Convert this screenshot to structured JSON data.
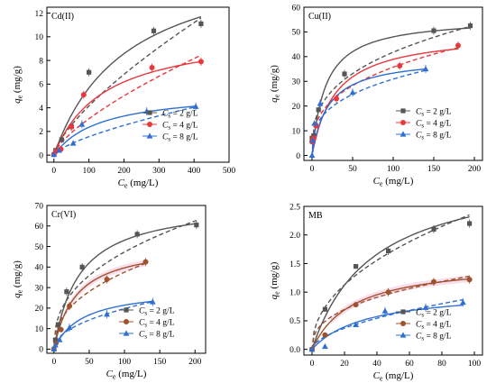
{
  "figure": {
    "legend_entries": [
      {
        "prefix": "C",
        "subscript": "s",
        "text": " = 2 g/L"
      },
      {
        "prefix": "C",
        "subscript": "s",
        "text": " = 4 g/L"
      },
      {
        "prefix": "C",
        "subscript": "s",
        "text": " = 8 g/L"
      }
    ],
    "colors": {
      "cs2": "#555555",
      "cs4": "#e8383d",
      "cs8": "#2f6fd1",
      "cs4_brown": "#a0522d",
      "band_pink": "#f6d5e6"
    }
  },
  "chart_data": [
    {
      "type": "scatter",
      "title": "Cd(II)",
      "xlabel": "Ce (mg/L)",
      "ylabel": "qe (mg/g)",
      "xlim": [
        -20,
        500
      ],
      "ylim": [
        -0.6,
        12.5
      ],
      "xticks": [
        0,
        100,
        200,
        300,
        400,
        500
      ],
      "yticks": [
        0,
        2,
        4,
        6,
        8,
        10,
        12
      ],
      "legend_position": "lower-right",
      "series": [
        {
          "name": "Cs = 2 g/L",
          "marker": "square",
          "color": "#555555",
          "x": [
            0,
            5,
            22,
            50,
            100,
            285,
            420
          ],
          "y": [
            0.05,
            0.4,
            1.3,
            2.4,
            7.0,
            10.5,
            11.1
          ],
          "fit1": {
            "Qm": 17.5,
            "K": 0.0048
          },
          "fit2": {
            "Kf": 0.155,
            "n": 1.4
          }
        },
        {
          "name": "Cs = 4 g/L",
          "marker": "circle",
          "color": "#e8383d",
          "x": [
            0,
            5,
            20,
            50,
            85,
            280,
            420
          ],
          "y": [
            0.05,
            0.3,
            0.5,
            2.4,
            5.1,
            7.4,
            7.9
          ],
          "fit1": {
            "Qm": 10.6,
            "K": 0.007
          },
          "fit2": {
            "Kf": 0.12,
            "n": 1.42
          }
        },
        {
          "name": "Cs = 8 g/L",
          "marker": "triangle",
          "color": "#2f6fd1",
          "x": [
            0,
            15,
            55,
            80,
            265,
            405
          ],
          "y": [
            0.05,
            0.4,
            1.0,
            2.6,
            3.7,
            4.1
          ],
          "fit1": {
            "Qm": 5.5,
            "K": 0.0075
          },
          "fit2": {
            "Kf": 0.065,
            "n": 1.45
          }
        }
      ]
    },
    {
      "type": "scatter",
      "title": "Cu(II)",
      "xlabel": "Ce (mg/L)",
      "ylabel": "qe (mg/g)",
      "xlim": [
        -10,
        210
      ],
      "ylim": [
        -2,
        60
      ],
      "xticks": [
        0,
        50,
        100,
        150,
        200
      ],
      "yticks": [
        0,
        10,
        20,
        30,
        40,
        50,
        60
      ],
      "legend_position": "lower-right",
      "series": [
        {
          "name": "Cs = 2 g/L",
          "marker": "square",
          "color": "#555555",
          "x": [
            0,
            2,
            8,
            40,
            150,
            195
          ],
          "y": [
            7,
            8,
            18.5,
            33,
            50.5,
            52.5
          ],
          "fit1": {
            "Qm": 56,
            "K": 0.06
          },
          "fit2": {
            "Kf": 9.0,
            "n": 3.0
          }
        },
        {
          "name": "Cs = 4 g/L",
          "marker": "circle",
          "color": "#e8383d",
          "x": [
            0,
            2,
            5,
            30,
            108,
            180
          ],
          "y": [
            5.5,
            7,
            12,
            23,
            36.3,
            44.5
          ],
          "fit1": {
            "Qm": 50,
            "K": 0.035
          },
          "fit2": {
            "Kf": 7.5,
            "n": 2.95
          }
        },
        {
          "name": "Cs = 8 g/L",
          "marker": "triangle",
          "color": "#2f6fd1",
          "x": [
            0,
            1,
            3,
            10,
            50,
            140
          ],
          "y": [
            0,
            6,
            13,
            21,
            25.5,
            35
          ],
          "fit1": {
            "Qm": 40,
            "K": 0.05
          },
          "fit2": {
            "Kf": 7.0,
            "n": 3.1
          }
        }
      ]
    },
    {
      "type": "scatter",
      "title": "Cr(VI)",
      "xlabel": "Ce (mg/L)",
      "ylabel": "qe (mg/g)",
      "xlim": [
        -10,
        215
      ],
      "ylim": [
        -2,
        70
      ],
      "xticks": [
        0,
        50,
        100,
        150,
        200
      ],
      "yticks": [
        0,
        10,
        20,
        30,
        40,
        50,
        60,
        70
      ],
      "legend_position": "lower-right",
      "series": [
        {
          "name": "Cs = 2 g/L",
          "marker": "square",
          "color": "#555555",
          "x": [
            0,
            2,
            6,
            18,
            40,
            118,
            202
          ],
          "y": [
            0,
            4.5,
            12,
            28,
            40,
            56,
            60.5
          ],
          "fit1": {
            "Qm": 72,
            "K": 0.028
          },
          "fit2": {
            "Kf": 7.5,
            "n": 2.5
          }
        },
        {
          "name": "Cs = 4 g/L",
          "marker": "circle",
          "color": "#a0522d",
          "x": [
            0,
            3,
            10,
            22,
            75,
            130
          ],
          "y": [
            0,
            3,
            9.5,
            21,
            34,
            42.5
          ],
          "fit1": {
            "Qm": 52,
            "K": 0.032
          },
          "fit2": {
            "Kf": 5.5,
            "n": 2.4
          }
        },
        {
          "name": "Cs = 8 g/L",
          "marker": "triangle",
          "color": "#2f6fd1",
          "x": [
            0,
            2,
            8,
            22,
            75,
            140
          ],
          "y": [
            0,
            2,
            4.5,
            10.5,
            17,
            23
          ],
          "fit1": {
            "Qm": 30,
            "K": 0.025
          },
          "fit2": {
            "Kf": 2.2,
            "n": 2.1
          }
        }
      ]
    },
    {
      "type": "scatter",
      "title": "MB",
      "xlabel": "Ce (mg/L)",
      "ylabel": "qe (mg/g)",
      "xlim": [
        -5,
        105
      ],
      "ylim": [
        -0.1,
        2.5
      ],
      "xticks": [
        0,
        20,
        40,
        60,
        80,
        100
      ],
      "yticks": [
        0.0,
        0.5,
        1.0,
        1.5,
        2.0,
        2.5
      ],
      "legend_position": "lower-right",
      "series": [
        {
          "name": "Cs = 2 g/L",
          "marker": "square",
          "color": "#555555",
          "x": [
            0,
            8,
            27,
            47,
            75,
            97
          ],
          "y": [
            0,
            0.7,
            1.45,
            1.72,
            2.1,
            2.2
          ],
          "fit1": {
            "Qm": 3.2,
            "K": 0.027
          },
          "fit2": {
            "Kf": 0.28,
            "n": 2.15
          }
        },
        {
          "name": "Cs = 4 g/L",
          "marker": "circle",
          "color": "#a0522d",
          "x": [
            0,
            8,
            27,
            47,
            75,
            97
          ],
          "y": [
            0,
            0.25,
            0.78,
            1.0,
            1.18,
            1.22
          ],
          "fit1": {
            "Qm": 1.55,
            "K": 0.04
          },
          "fit2": {
            "Kf": 0.22,
            "n": 2.6
          }
        },
        {
          "name": "Cs = 8 g/L",
          "marker": "triangle",
          "color": "#2f6fd1",
          "x": [
            0,
            8,
            27,
            45,
            70,
            93
          ],
          "y": [
            0,
            0.05,
            0.43,
            0.67,
            0.73,
            0.82
          ],
          "fit1": {
            "Qm": 1.05,
            "K": 0.03
          },
          "fit2": {
            "Kf": 0.07,
            "n": 1.8
          }
        }
      ]
    }
  ]
}
